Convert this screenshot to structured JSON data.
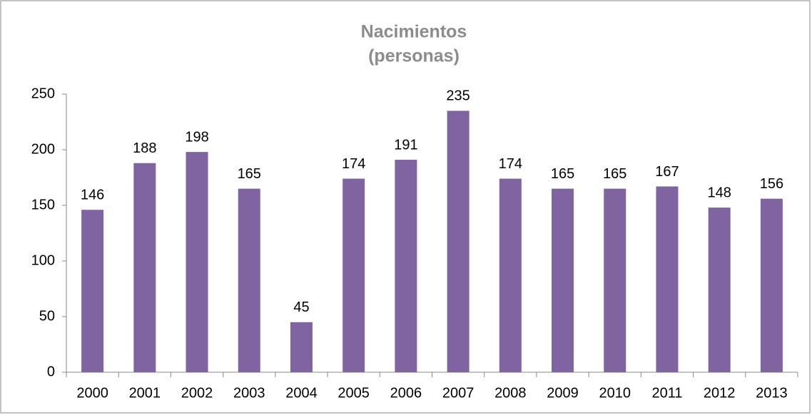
{
  "chart_data": {
    "type": "bar",
    "title": [
      "Nacimientos",
      "(personas)"
    ],
    "categories": [
      "2000",
      "2001",
      "2002",
      "2003",
      "2004",
      "2005",
      "2006",
      "2007",
      "2008",
      "2009",
      "2010",
      "2011",
      "2012",
      "2013"
    ],
    "values": [
      146,
      188,
      198,
      165,
      45,
      174,
      191,
      235,
      174,
      165,
      165,
      167,
      148,
      156
    ],
    "color": "#8064a2",
    "ylim": [
      0,
      250
    ],
    "yticks": [
      0,
      50,
      100,
      150,
      200,
      250
    ],
    "grid": false
  }
}
